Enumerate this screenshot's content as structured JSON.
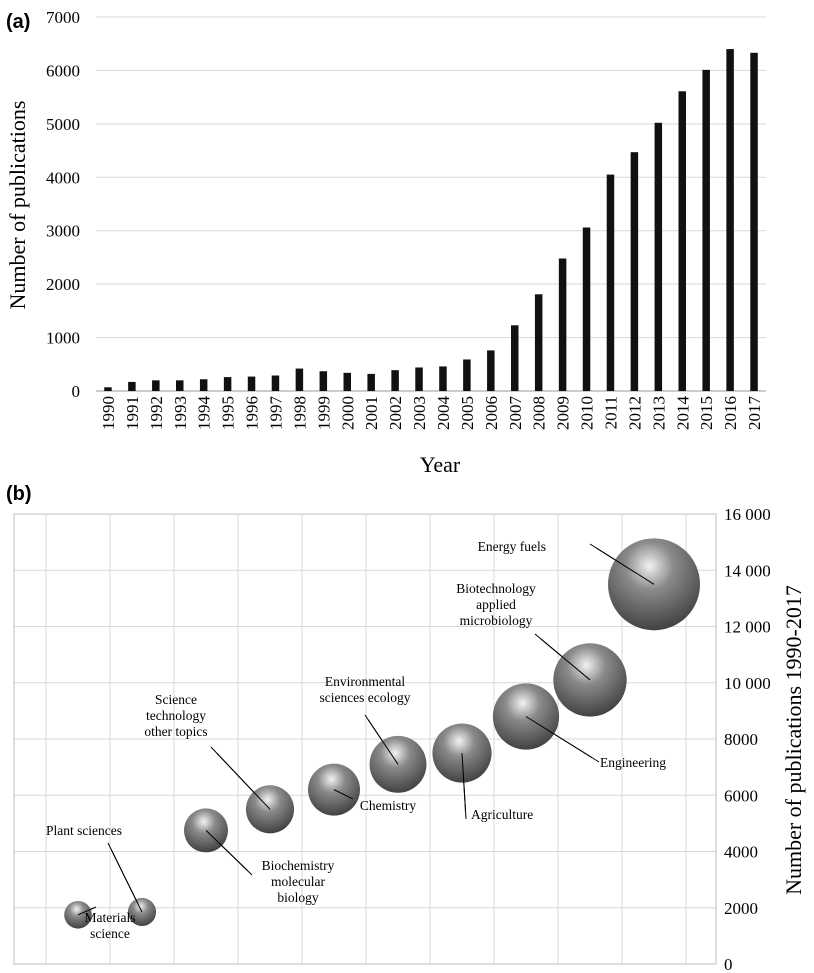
{
  "chart_data": [
    {
      "panel": "(a)",
      "type": "bar",
      "xlabel": "Year",
      "ylabel": "Number of publications",
      "ylim": [
        0,
        7000
      ],
      "yticks": [
        "0",
        "1000",
        "2000",
        "3000",
        "4000",
        "5000",
        "6000",
        "7000"
      ],
      "grid": true,
      "categories": [
        "1990",
        "1991",
        "1992",
        "1993",
        "1994",
        "1995",
        "1996",
        "1997",
        "1998",
        "1999",
        "2000",
        "2001",
        "2002",
        "2003",
        "2004",
        "2005",
        "2006",
        "2007",
        "2008",
        "2009",
        "2010",
        "2011",
        "2012",
        "2013",
        "2014",
        "2015",
        "2016",
        "2017"
      ],
      "values": [
        70,
        170,
        200,
        200,
        220,
        260,
        270,
        290,
        420,
        370,
        340,
        320,
        390,
        440,
        460,
        590,
        760,
        1230,
        1810,
        2480,
        3060,
        4050,
        4470,
        5020,
        5610,
        6010,
        6400,
        6330
      ],
      "colors": {
        "bar": "#111111",
        "grid": "#d9d9d9"
      }
    },
    {
      "panel": "(b)",
      "type": "scatter",
      "ylabel": "Number of publications 1990-2017",
      "ylim": [
        0,
        16000
      ],
      "yticks": [
        "0",
        "2000",
        "4000",
        "6000",
        "8000",
        "10 000",
        "12 000",
        "14 000",
        "16 000"
      ],
      "grid": true,
      "points": [
        {
          "label": "Materials science",
          "lines": [
            "Materials",
            "science"
          ],
          "value": 1750
        },
        {
          "label": "Plant sciences",
          "lines": [
            "Plant sciences"
          ],
          "value": 1850
        },
        {
          "label": "Biochemistry molecular biology",
          "lines": [
            "Biochemistry",
            "molecular",
            "biology"
          ],
          "value": 4750
        },
        {
          "label": "Science technology other topics",
          "lines": [
            "Science",
            "technology",
            "other topics"
          ],
          "value": 5500
        },
        {
          "label": "Chemistry",
          "lines": [
            "Chemistry"
          ],
          "value": 6200
        },
        {
          "label": "Environmental sciences ecology",
          "lines": [
            "Environmental",
            "sciences ecology"
          ],
          "value": 7100
        },
        {
          "label": "Agriculture",
          "lines": [
            "Agriculture"
          ],
          "value": 7500
        },
        {
          "label": "Engineering",
          "lines": [
            "Engineering"
          ],
          "value": 8800
        },
        {
          "label": "Biotechnology applied microbiology",
          "lines": [
            "Biotechnology",
            "applied",
            "microbiology"
          ],
          "value": 10100
        },
        {
          "label": "Energy fuels",
          "lines": [
            "Energy fuels"
          ],
          "value": 13500
        }
      ],
      "colors": {
        "bubble_light": "#f2f2f2",
        "bubble_mid": "#8a8a8a",
        "bubble_dark": "#3a3a3a",
        "grid": "#d9d9d9",
        "frame": "#bfbfbf"
      }
    }
  ]
}
